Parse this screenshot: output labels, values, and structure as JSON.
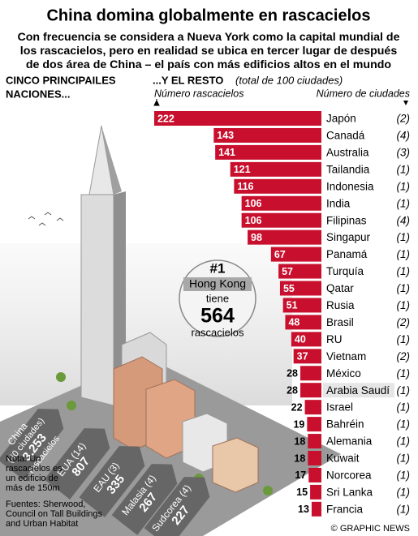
{
  "header": {
    "title": "China domina globalmente en rascacielos",
    "subtitle_lines": [
      "Con frecuencia se considera a Nueva York como la capital mundial de",
      "los rascacielos, pero en realidad se ubica en tercer lugar de después",
      "de dos área de China – el país con más edificios altos en el mundo"
    ]
  },
  "left_heading": [
    "CINCO PRINCIPAILES",
    "NACIONES..."
  ],
  "right_heading": {
    "main": "...Y EL RESTO",
    "note": "(total de 100 ciudades)",
    "bars_label": "Número rascacielos",
    "cities_label": "Número de ciudades"
  },
  "chart_data": {
    "type": "bar",
    "orientation": "horizontal",
    "color": "#c8102e",
    "categories": [
      "Japón",
      "Canadá",
      "Australia",
      "Tailandia",
      "Indonesia",
      "India",
      "Filipinas",
      "Singapur",
      "Panamá",
      "Turquía",
      "Qatar",
      "Rusia",
      "Brasil",
      "RU",
      "Vietnam",
      "México",
      "Arabia Saudí",
      "Israel",
      "Bahréin",
      "Alemania",
      "Kuwait",
      "Norcorea",
      "Sri Lanka",
      "Francia"
    ],
    "values": [
      222,
      143,
      141,
      121,
      116,
      106,
      106,
      98,
      67,
      57,
      55,
      51,
      48,
      40,
      37,
      28,
      28,
      22,
      19,
      18,
      18,
      17,
      15,
      13
    ],
    "city_counts": [
      "(2)",
      "(4)",
      "(3)",
      "(1)",
      "(1)",
      "(1)",
      "(4)",
      "(1)",
      "(1)",
      "(1)",
      "(1)",
      "(1)",
      "(2)",
      "(1)",
      "(2)",
      "(1)",
      "(1)",
      "(1)",
      "(1)",
      "(1)",
      "(1)",
      "(1)",
      "(1)",
      "(1)"
    ]
  },
  "top_five": [
    {
      "name": "China",
      "cities": "(40 ciudades)",
      "value": "3.253",
      "unit": "rascacielos"
    },
    {
      "name": "EUA (14)",
      "value": "807"
    },
    {
      "name": "EAU (3)",
      "value": "335"
    },
    {
      "name": "Malasia (4)",
      "value": "267"
    },
    {
      "name": "Sudcorea (4)",
      "value": "227"
    }
  ],
  "callout": {
    "rank": "#1",
    "city": "Hong Kong",
    "verb": "tiene",
    "value": "564",
    "unit": "rascacielos"
  },
  "note": [
    "Nota: Un",
    "rascacielos es",
    "un edificio de",
    "más de 150m"
  ],
  "sources": [
    "Fuentes: Sherwood,",
    "Council on Tall Buildings",
    "and Urban Habitat"
  ],
  "credit": "© GRAPHIC NEWS"
}
